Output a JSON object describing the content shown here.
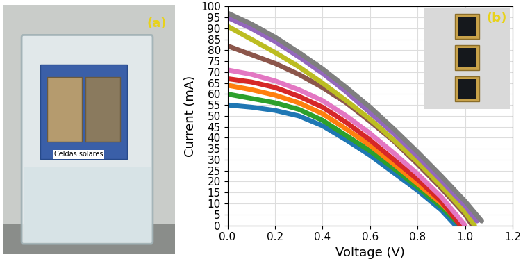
{
  "chart_data": {
    "type": "line",
    "x_label": "Voltage (V)",
    "y_label": "Current (mA)",
    "xlim": [
      0.0,
      1.2
    ],
    "xticks": [
      0.0,
      0.2,
      0.4,
      0.6,
      0.8,
      1.0,
      1.2
    ],
    "ylim": [
      0,
      100
    ],
    "yticks": [
      0,
      5,
      10,
      15,
      20,
      25,
      30,
      35,
      40,
      45,
      50,
      55,
      60,
      65,
      70,
      75,
      80,
      85,
      90,
      95,
      100
    ],
    "grid": true,
    "annotations": [
      "(b)"
    ],
    "series": [
      {
        "color": "#1f77b4",
        "x": [
          0.0,
          0.1,
          0.2,
          0.3,
          0.4,
          0.5,
          0.6,
          0.7,
          0.8,
          0.9,
          0.96
        ],
        "values": [
          55,
          54,
          52.5,
          50,
          45.5,
          39,
          32,
          24,
          16,
          7,
          0
        ]
      },
      {
        "color": "#2ca02c",
        "x": [
          0.0,
          0.1,
          0.2,
          0.3,
          0.4,
          0.5,
          0.6,
          0.7,
          0.8,
          0.9,
          0.98
        ],
        "values": [
          60,
          58,
          56,
          53,
          48,
          41,
          34,
          26,
          17.5,
          8.5,
          0
        ]
      },
      {
        "color": "#ff7f0e",
        "x": [
          0.0,
          0.1,
          0.2,
          0.3,
          0.4,
          0.5,
          0.6,
          0.7,
          0.8,
          0.9,
          0.99
        ],
        "values": [
          64,
          62,
          59.5,
          56,
          51,
          44,
          36.5,
          28,
          19,
          10,
          0
        ]
      },
      {
        "color": "#d62728",
        "x": [
          0.0,
          0.1,
          0.2,
          0.3,
          0.4,
          0.5,
          0.6,
          0.7,
          0.8,
          0.9,
          0.98
        ],
        "values": [
          67,
          65.5,
          63,
          59,
          54,
          47,
          39,
          30,
          21,
          11,
          0
        ]
      },
      {
        "color": "#e377c2",
        "x": [
          0.0,
          0.1,
          0.2,
          0.3,
          0.4,
          0.5,
          0.6,
          0.7,
          0.8,
          0.9,
          1.0
        ],
        "values": [
          71,
          69,
          66,
          62,
          57,
          50,
          42,
          33,
          23.5,
          13,
          0
        ]
      },
      {
        "color": "#8c564b",
        "x": [
          0.0,
          0.1,
          0.2,
          0.3,
          0.4,
          0.5,
          0.6,
          0.7,
          0.8,
          0.9,
          1.0,
          1.03
        ],
        "values": [
          82,
          78,
          74,
          69,
          63,
          56,
          47.5,
          38.5,
          28,
          17,
          5,
          0
        ]
      },
      {
        "color": "#bcbd22",
        "x": [
          0.0,
          0.1,
          0.2,
          0.3,
          0.4,
          0.5,
          0.6,
          0.7,
          0.8,
          0.9,
          1.0,
          1.04
        ],
        "values": [
          91,
          85,
          79,
          72.5,
          65,
          57,
          48.5,
          39,
          29,
          18,
          6,
          0
        ]
      },
      {
        "color": "#9467bd",
        "x": [
          0.0,
          0.1,
          0.2,
          0.3,
          0.4,
          0.5,
          0.6,
          0.7,
          0.8,
          0.9,
          1.0,
          1.05
        ],
        "values": [
          95,
          90,
          84,
          77,
          69.5,
          61,
          51.5,
          42,
          31.5,
          20.5,
          9,
          2
        ]
      },
      {
        "color": "#7f7f7f",
        "x": [
          0.0,
          0.1,
          0.2,
          0.3,
          0.4,
          0.5,
          0.6,
          0.7,
          0.8,
          0.9,
          1.0,
          1.07
        ],
        "values": [
          97,
          92,
          86,
          79,
          71.5,
          63,
          54,
          44,
          33.5,
          22.5,
          11,
          2
        ]
      }
    ]
  },
  "photo_panel": {
    "label": "(a)",
    "text": "Celdas solares"
  }
}
